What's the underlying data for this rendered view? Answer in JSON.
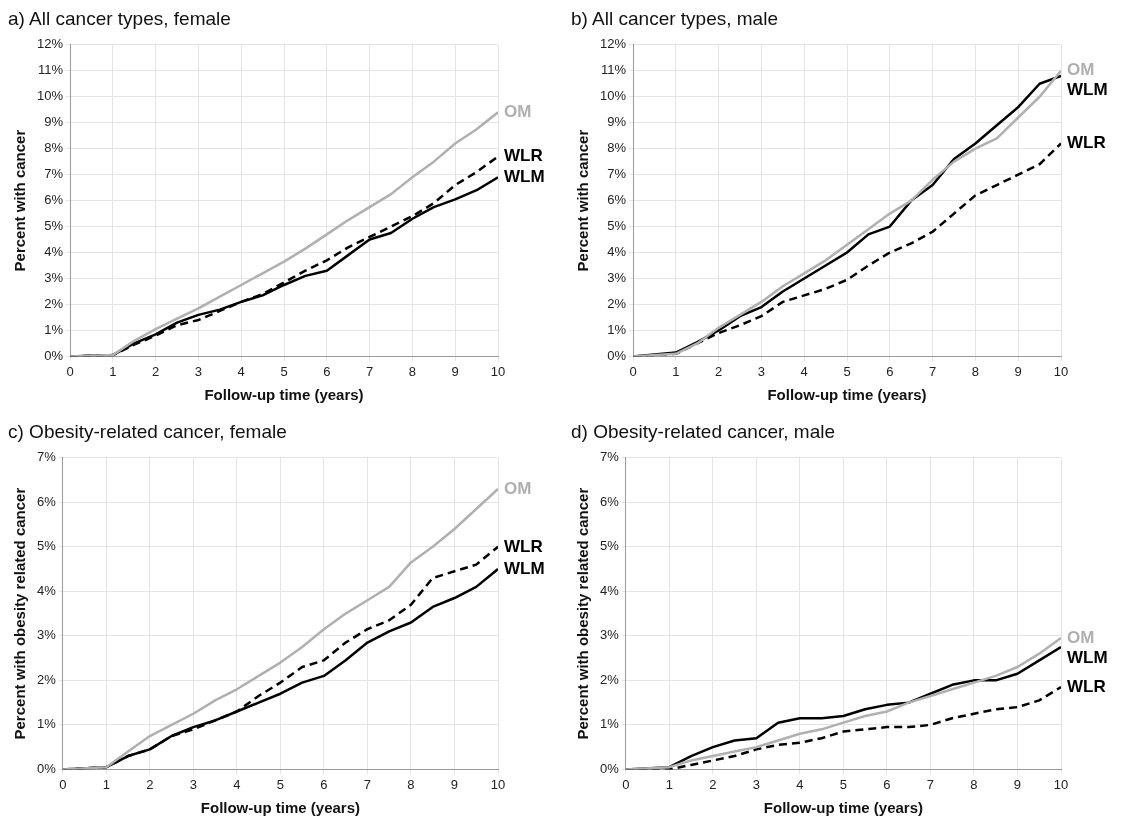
{
  "chart_data": [
    {
      "type": "line",
      "title": "a) All cancer types, female",
      "xlabel": "Follow-up time (years)",
      "ylabel": "Percent with cancer",
      "xlim": [
        0,
        10
      ],
      "xticks": [
        0,
        1,
        2,
        3,
        4,
        5,
        6,
        7,
        8,
        9,
        10
      ],
      "ylim": [
        0,
        12
      ],
      "yticks": [
        {
          "value": 0,
          "label": "0%"
        },
        {
          "value": 1,
          "label": "1%"
        },
        {
          "value": 2,
          "label": "2%"
        },
        {
          "value": 3,
          "label": "3%"
        },
        {
          "value": 4,
          "label": "4%"
        },
        {
          "value": 5,
          "label": "5%"
        },
        {
          "value": 6,
          "label": "6%"
        },
        {
          "value": 7,
          "label": "7%"
        },
        {
          "value": 8,
          "label": "8%"
        },
        {
          "value": 9,
          "label": "9%"
        },
        {
          "value": 10,
          "label": "10%"
        },
        {
          "value": 11,
          "label": "11%"
        },
        {
          "value": 12,
          "label": "12%"
        }
      ],
      "grid": true,
      "legend": false,
      "x": [
        0,
        1,
        1.5,
        2,
        2.5,
        3,
        3.5,
        4,
        4.5,
        5,
        5.5,
        6,
        6.5,
        7,
        7.5,
        8,
        8.5,
        9,
        9.5,
        10
      ],
      "series": [
        {
          "name": "OM",
          "color": "#b0b0b0",
          "line_style": "solid",
          "values": [
            0,
            0.05,
            0.6,
            1.05,
            1.45,
            1.85,
            2.3,
            2.75,
            3.2,
            3.65,
            4.15,
            4.7,
            5.25,
            5.75,
            6.25,
            6.9,
            7.5,
            8.2,
            8.75,
            9.4
          ]
        },
        {
          "name": "WLR",
          "color": "#000000",
          "line_style": "dashed",
          "values": [
            0,
            0.05,
            0.45,
            0.8,
            1.2,
            1.4,
            1.75,
            2.1,
            2.4,
            2.85,
            3.3,
            3.7,
            4.2,
            4.6,
            5.0,
            5.4,
            5.9,
            6.6,
            7.1,
            7.7
          ]
        },
        {
          "name": "WLM",
          "color": "#000000",
          "line_style": "solid",
          "values": [
            0,
            0.05,
            0.5,
            0.85,
            1.3,
            1.6,
            1.8,
            2.1,
            2.35,
            2.75,
            3.1,
            3.3,
            3.9,
            4.5,
            4.75,
            5.3,
            5.75,
            6.05,
            6.4,
            6.9
          ]
        }
      ]
    },
    {
      "type": "line",
      "title": "b) All cancer types, male",
      "xlabel": "Follow-up time (years)",
      "ylabel": "Percent with cancer",
      "xlim": [
        0,
        10
      ],
      "xticks": [
        0,
        1,
        2,
        3,
        4,
        5,
        6,
        7,
        8,
        9,
        10
      ],
      "ylim": [
        0,
        12
      ],
      "yticks": [
        {
          "value": 0,
          "label": "0%"
        },
        {
          "value": 1,
          "label": "1%"
        },
        {
          "value": 2,
          "label": "2%"
        },
        {
          "value": 3,
          "label": "3%"
        },
        {
          "value": 4,
          "label": "4%"
        },
        {
          "value": 5,
          "label": "5%"
        },
        {
          "value": 6,
          "label": "6%"
        },
        {
          "value": 7,
          "label": "7%"
        },
        {
          "value": 8,
          "label": "8%"
        },
        {
          "value": 9,
          "label": "9%"
        },
        {
          "value": 10,
          "label": "10%"
        },
        {
          "value": 11,
          "label": "11%"
        },
        {
          "value": 12,
          "label": "12%"
        }
      ],
      "grid": true,
      "legend": false,
      "x": [
        0,
        1,
        1.5,
        2,
        2.5,
        3,
        3.5,
        4,
        4.5,
        5,
        5.5,
        6,
        6.5,
        7,
        7.5,
        8,
        8.5,
        9,
        9.5,
        10
      ],
      "series": [
        {
          "name": "OM",
          "color": "#b0b0b0",
          "line_style": "solid",
          "values": [
            0,
            0.1,
            0.5,
            1.1,
            1.6,
            2.1,
            2.7,
            3.2,
            3.7,
            4.3,
            4.9,
            5.5,
            6.0,
            6.8,
            7.5,
            8.0,
            8.4,
            9.2,
            10.0,
            11.0
          ]
        },
        {
          "name": "WLM",
          "color": "#000000",
          "line_style": "solid",
          "values": [
            0,
            0.15,
            0.55,
            1.0,
            1.55,
            1.9,
            2.5,
            3.0,
            3.5,
            4.0,
            4.7,
            5.0,
            6.0,
            6.6,
            7.6,
            8.2,
            8.9,
            9.6,
            10.5,
            10.8
          ]
        },
        {
          "name": "WLR",
          "color": "#000000",
          "line_style": "dashed",
          "values": [
            0,
            0.1,
            0.5,
            0.9,
            1.2,
            1.55,
            2.1,
            2.35,
            2.6,
            2.95,
            3.5,
            4.0,
            4.35,
            4.8,
            5.5,
            6.2,
            6.6,
            7.0,
            7.4,
            8.2
          ]
        }
      ]
    },
    {
      "type": "line",
      "title": "c) Obesity-related cancer, female",
      "xlabel": "Follow-up time (years)",
      "ylabel": "Percent with obesity related cancer",
      "xlim": [
        0,
        10
      ],
      "xticks": [
        0,
        1,
        2,
        3,
        4,
        5,
        6,
        7,
        8,
        9,
        10
      ],
      "ylim": [
        0,
        7
      ],
      "yticks": [
        {
          "value": 0,
          "label": "0%"
        },
        {
          "value": 1,
          "label": "1%"
        },
        {
          "value": 2,
          "label": "2%"
        },
        {
          "value": 3,
          "label": "3%"
        },
        {
          "value": 4,
          "label": "4%"
        },
        {
          "value": 5,
          "label": "5%"
        },
        {
          "value": 6,
          "label": "6%"
        },
        {
          "value": 7,
          "label": "7%"
        }
      ],
      "grid": true,
      "legend": false,
      "x": [
        0,
        1,
        1.5,
        2,
        2.5,
        3,
        3.5,
        4,
        4.5,
        5,
        5.5,
        6,
        6.5,
        7,
        7.5,
        8,
        8.5,
        9,
        9.5,
        10
      ],
      "series": [
        {
          "name": "OM",
          "color": "#b0b0b0",
          "line_style": "solid",
          "values": [
            0,
            0.05,
            0.4,
            0.75,
            1.0,
            1.25,
            1.55,
            1.8,
            2.1,
            2.4,
            2.75,
            3.15,
            3.5,
            3.8,
            4.1,
            4.65,
            5.0,
            5.4,
            5.85,
            6.3
          ]
        },
        {
          "name": "WLR",
          "color": "#000000",
          "line_style": "dashed",
          "values": [
            0,
            0.05,
            0.3,
            0.45,
            0.75,
            0.9,
            1.1,
            1.3,
            1.65,
            1.95,
            2.3,
            2.45,
            2.85,
            3.15,
            3.35,
            3.7,
            4.3,
            4.45,
            4.6,
            5.0
          ]
        },
        {
          "name": "WLM",
          "color": "#000000",
          "line_style": "solid",
          "values": [
            0,
            0.05,
            0.3,
            0.45,
            0.75,
            0.95,
            1.1,
            1.3,
            1.5,
            1.7,
            1.95,
            2.1,
            2.45,
            2.85,
            3.1,
            3.3,
            3.65,
            3.85,
            4.1,
            4.5
          ]
        }
      ]
    },
    {
      "type": "line",
      "title": "d) Obesity-related cancer, male",
      "xlabel": "Follow-up time (years)",
      "ylabel": "Percent with obesity related cancer",
      "xlim": [
        0,
        10
      ],
      "xticks": [
        0,
        1,
        2,
        3,
        4,
        5,
        6,
        7,
        8,
        9,
        10
      ],
      "ylim": [
        0,
        7
      ],
      "yticks": [
        {
          "value": 0,
          "label": "0%"
        },
        {
          "value": 1,
          "label": "1%"
        },
        {
          "value": 2,
          "label": "2%"
        },
        {
          "value": 3,
          "label": "3%"
        },
        {
          "value": 4,
          "label": "4%"
        },
        {
          "value": 5,
          "label": "5%"
        },
        {
          "value": 6,
          "label": "6%"
        },
        {
          "value": 7,
          "label": "7%"
        }
      ],
      "grid": true,
      "legend": false,
      "x": [
        0,
        1,
        1.5,
        2,
        2.5,
        3,
        3.5,
        4,
        4.5,
        5,
        5.5,
        6,
        6.5,
        7,
        7.5,
        8,
        8.5,
        9,
        9.5,
        10
      ],
      "series": [
        {
          "name": "OM",
          "color": "#b0b0b0",
          "line_style": "solid",
          "values": [
            0,
            0.05,
            0.2,
            0.3,
            0.4,
            0.5,
            0.65,
            0.8,
            0.9,
            1.05,
            1.2,
            1.3,
            1.5,
            1.65,
            1.8,
            1.95,
            2.1,
            2.3,
            2.6,
            2.95
          ]
        },
        {
          "name": "WLM",
          "color": "#000000",
          "line_style": "solid",
          "values": [
            0,
            0.05,
            0.3,
            0.5,
            0.65,
            0.7,
            1.05,
            1.15,
            1.15,
            1.2,
            1.35,
            1.45,
            1.5,
            1.7,
            1.9,
            2.0,
            2.0,
            2.15,
            2.45,
            2.75
          ]
        },
        {
          "name": "WLR",
          "color": "#000000",
          "line_style": "dashed",
          "values": [
            0,
            0.0,
            0.1,
            0.2,
            0.3,
            0.45,
            0.55,
            0.6,
            0.7,
            0.85,
            0.9,
            0.95,
            0.95,
            1.0,
            1.15,
            1.25,
            1.35,
            1.4,
            1.55,
            1.85
          ]
        }
      ]
    }
  ]
}
